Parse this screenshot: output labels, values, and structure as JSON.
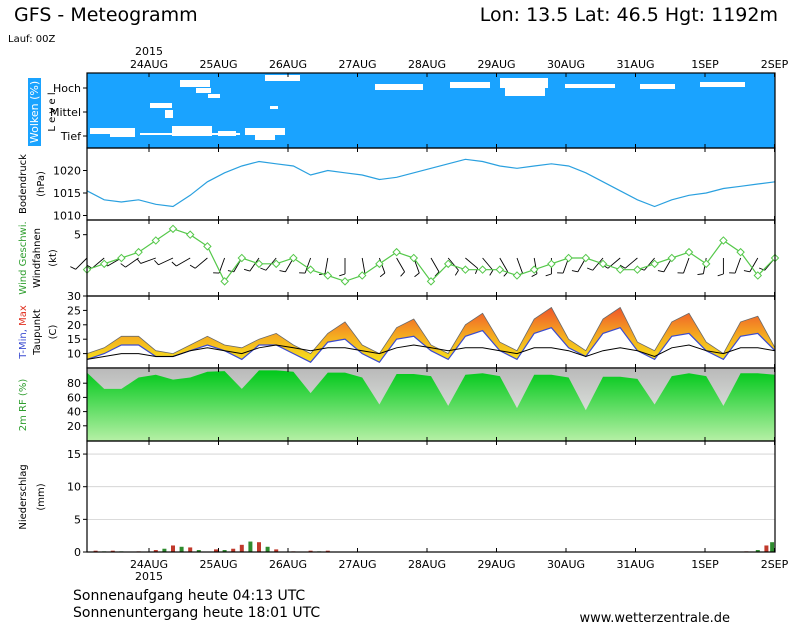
{
  "header": {
    "title": "GFS - Meteogramm",
    "location": "Lon: 13.5  Lat: 46.5  Hgt: 1192m",
    "run": "Lauf: 00Z"
  },
  "footer": {
    "sunrise": "Sonnenaufgang heute 04:13 UTC",
    "sunset": "Sonnenuntergang heute 18:01 UTC",
    "url": "www.wetterzentrale.de"
  },
  "colors": {
    "cloud_bg": "#1aa3ff",
    "pressure_line": "#2aa0df",
    "wind_line": "#55c84a",
    "wind_barb": "#000000",
    "dewpoint": "#000000",
    "tmin": "#3a4bd0",
    "tmax": "#f0562a",
    "rh_fill": "#00cc22",
    "precip_rain": "#c0392b",
    "precip_conv": "#2e8b2e"
  },
  "chart_data": {
    "type": "meteogram",
    "year": "2015",
    "dates": [
      "24AUG",
      "25AUG",
      "26AUG",
      "27AUG",
      "28AUG",
      "29AUG",
      "30AUG",
      "31AUG",
      "1SEP",
      "2SEP"
    ],
    "panels": [
      {
        "id": "clouds",
        "type": "heatmap",
        "ylabel": "Wolken (%)",
        "ylabel2": "L e v e l",
        "levels": [
          "Hoch",
          "Mittel",
          "Tief"
        ],
        "note": "mostly 100% cover, white gaps = clear"
      },
      {
        "id": "pressure",
        "type": "line",
        "ylabel": "Bodendruck",
        "unit": "(hPa)",
        "ylim": [
          1009,
          1025
        ],
        "ticks": [
          1010,
          1015,
          1020
        ],
        "x_hours": [
          0,
          6,
          12,
          18,
          24,
          30,
          36,
          42,
          48,
          54,
          60,
          66,
          72,
          78,
          84,
          90,
          96,
          102,
          108,
          114,
          120,
          126,
          132,
          138,
          144,
          150,
          156,
          162,
          168,
          174,
          180,
          186,
          192,
          198,
          204,
          210,
          216,
          222,
          228,
          234,
          240
        ],
        "values": [
          1015.5,
          1013.5,
          1013,
          1013.5,
          1012.5,
          1012,
          1014.5,
          1017.5,
          1019.5,
          1021,
          1022,
          1021.5,
          1021,
          1019,
          1020,
          1019.5,
          1019,
          1018,
          1018.5,
          1019.5,
          1020.5,
          1021.5,
          1022.5,
          1022,
          1021,
          1020.5,
          1021,
          1021.5,
          1021,
          1019.5,
          1017.5,
          1015.5,
          1013.5,
          1012,
          1013.5,
          1014.5,
          1015,
          1016,
          1016.5,
          1017,
          1017.5
        ]
      },
      {
        "id": "wind",
        "type": "line",
        "ylabel": "Wind Geschwi.",
        "ylabel2": "Windfahnen",
        "unit": "(kt)",
        "ylim": [
          0,
          6
        ],
        "ticks": [
          5
        ],
        "x_hours": [
          0,
          6,
          12,
          18,
          24,
          30,
          36,
          42,
          48,
          54,
          60,
          66,
          72,
          78,
          84,
          90,
          96,
          102,
          108,
          114,
          120,
          126,
          132,
          138,
          144,
          150,
          156,
          162,
          168,
          174,
          180,
          186,
          192,
          198,
          204,
          210,
          216,
          222,
          228,
          234,
          240
        ],
        "values": [
          2,
          2.5,
          3,
          3.5,
          4.5,
          5.5,
          5,
          4,
          1,
          3,
          2.5,
          2.5,
          3,
          2,
          1.5,
          1,
          1.5,
          2.5,
          3.5,
          3,
          1,
          2.5,
          2,
          2,
          2,
          1.5,
          2,
          2.5,
          3,
          3,
          2.5,
          2,
          2,
          2.5,
          3,
          3.5,
          2.5,
          4.5,
          3.5,
          1.5,
          3
        ],
        "barb_dirs_deg": [
          225,
          230,
          240,
          235,
          250,
          245,
          240,
          230,
          200,
          210,
          215,
          220,
          210,
          200,
          190,
          180,
          170,
          160,
          150,
          160,
          150,
          140,
          130,
          140,
          150,
          160,
          170,
          180,
          200,
          210,
          220,
          230,
          230,
          220,
          210,
          200,
          190,
          180,
          200,
          210,
          220
        ]
      },
      {
        "id": "temperature",
        "type": "area",
        "ylabel": "T-Min, Max",
        "ylabel2": "Taupunkt",
        "unit": "(C)",
        "ylim": [
          5,
          30
        ],
        "ticks": [
          10,
          15,
          20,
          25,
          30
        ],
        "x_hours": [
          0,
          6,
          12,
          18,
          24,
          30,
          36,
          42,
          48,
          54,
          60,
          66,
          72,
          78,
          84,
          90,
          96,
          102,
          108,
          114,
          120,
          126,
          132,
          138,
          144,
          150,
          156,
          162,
          168,
          174,
          180,
          186,
          192,
          198,
          204,
          210,
          216,
          222,
          228,
          234,
          240
        ],
        "tmax": [
          10,
          12,
          16,
          16,
          11,
          10,
          13,
          16,
          13,
          12,
          15,
          17,
          13,
          10,
          17,
          21,
          13,
          10,
          19,
          22,
          13,
          10,
          20,
          24,
          14,
          11,
          22,
          26,
          15,
          11,
          22,
          26,
          14,
          11,
          21,
          24,
          14,
          10,
          21,
          23,
          12
        ],
        "tmin": [
          8,
          10,
          13,
          13,
          9,
          9,
          11,
          13,
          11,
          8,
          13,
          13,
          10,
          7,
          14,
          15,
          10,
          7,
          15,
          16,
          11,
          8,
          16,
          18,
          11,
          8,
          17,
          19,
          12,
          9,
          17,
          19,
          11,
          8,
          16,
          17,
          11,
          8,
          16,
          17,
          11
        ],
        "dewpoint": [
          8,
          9,
          10,
          10,
          9,
          9,
          11,
          12,
          11,
          10,
          12,
          13,
          12,
          11,
          12,
          12,
          11,
          10,
          12,
          13,
          12,
          11,
          12,
          12,
          11,
          10,
          12,
          12,
          11,
          9,
          11,
          12,
          11,
          9,
          12,
          13,
          11,
          10,
          12,
          12,
          11
        ]
      },
      {
        "id": "humidity",
        "type": "area",
        "ylabel": "2m RF (%)",
        "ylim": [
          0,
          100
        ],
        "ticks": [
          20,
          40,
          60,
          80
        ],
        "x_hours": [
          0,
          6,
          12,
          18,
          24,
          30,
          36,
          42,
          48,
          54,
          60,
          66,
          72,
          78,
          84,
          90,
          96,
          102,
          108,
          114,
          120,
          126,
          132,
          138,
          144,
          150,
          156,
          162,
          168,
          174,
          180,
          186,
          192,
          198,
          204,
          210,
          216,
          222,
          228,
          234,
          240
        ],
        "values": [
          95,
          72,
          72,
          88,
          92,
          85,
          88,
          96,
          97,
          72,
          98,
          98,
          96,
          66,
          95,
          95,
          88,
          50,
          93,
          93,
          90,
          48,
          92,
          94,
          90,
          45,
          92,
          92,
          88,
          42,
          89,
          89,
          86,
          50,
          90,
          94,
          90,
          48,
          94,
          94,
          92
        ]
      },
      {
        "id": "precipitation",
        "type": "bar",
        "ylabel": "Niederschlag",
        "unit": "(mm)",
        "ylim": [
          0,
          17
        ],
        "ticks": [
          0,
          5,
          10,
          15
        ],
        "bars": [
          {
            "h": 3,
            "v": 0.2,
            "kind": "rain"
          },
          {
            "h": 6,
            "v": 0.1,
            "kind": "conv"
          },
          {
            "h": 9,
            "v": 0.2,
            "kind": "rain"
          },
          {
            "h": 12,
            "v": 0.1,
            "kind": "conv"
          },
          {
            "h": 18,
            "v": 0.1,
            "kind": "rain"
          },
          {
            "h": 24,
            "v": 0.3,
            "kind": "rain"
          },
          {
            "h": 27,
            "v": 0.5,
            "kind": "conv"
          },
          {
            "h": 30,
            "v": 1.0,
            "kind": "rain"
          },
          {
            "h": 33,
            "v": 0.8,
            "kind": "conv"
          },
          {
            "h": 36,
            "v": 0.7,
            "kind": "rain"
          },
          {
            "h": 39,
            "v": 0.3,
            "kind": "conv"
          },
          {
            "h": 45,
            "v": 0.4,
            "kind": "rain"
          },
          {
            "h": 48,
            "v": 0.3,
            "kind": "conv"
          },
          {
            "h": 51,
            "v": 0.5,
            "kind": "rain"
          },
          {
            "h": 54,
            "v": 1.1,
            "kind": "rain"
          },
          {
            "h": 57,
            "v": 1.6,
            "kind": "conv"
          },
          {
            "h": 60,
            "v": 1.5,
            "kind": "rain"
          },
          {
            "h": 63,
            "v": 0.8,
            "kind": "conv"
          },
          {
            "h": 66,
            "v": 0.4,
            "kind": "rain"
          },
          {
            "h": 72,
            "v": 0.1,
            "kind": "rain"
          },
          {
            "h": 78,
            "v": 0.2,
            "kind": "rain"
          },
          {
            "h": 81,
            "v": 0.1,
            "kind": "conv"
          },
          {
            "h": 84,
            "v": 0.2,
            "kind": "rain"
          },
          {
            "h": 230,
            "v": 0.1,
            "kind": "rain"
          },
          {
            "h": 234,
            "v": 0.3,
            "kind": "conv"
          },
          {
            "h": 237,
            "v": 1.0,
            "kind": "rain"
          },
          {
            "h": 239,
            "v": 1.5,
            "kind": "conv"
          }
        ]
      }
    ]
  }
}
